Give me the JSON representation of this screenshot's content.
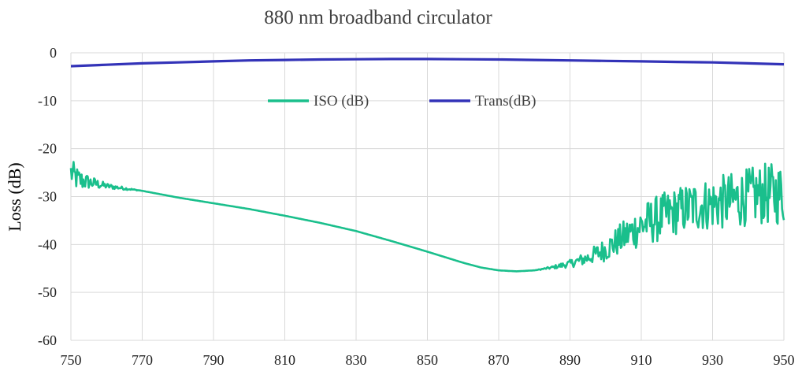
{
  "chart_data": {
    "type": "line",
    "title": "880  nm broadband circulator",
    "xlabel": "",
    "ylabel": "Loss (dB)",
    "xlim": [
      750,
      950
    ],
    "ylim": [
      -60,
      0
    ],
    "x_ticks": [
      "750",
      "770",
      "790",
      "810",
      "830",
      "850",
      "870",
      "890",
      "910",
      "930",
      "950"
    ],
    "y_ticks": [
      "0",
      "-10",
      "-20",
      "-30",
      "-40",
      "-50",
      "-60"
    ],
    "grid": true,
    "legend_position": "top-center",
    "series": [
      {
        "name": "ISO (dB)",
        "color": "#1abf8c",
        "style": "noisy",
        "x": [
          750,
          752,
          755,
          760,
          770,
          780,
          790,
          800,
          810,
          820,
          830,
          840,
          850,
          860,
          865,
          870,
          875,
          880,
          885,
          890,
          895,
          900,
          905,
          910,
          915,
          920,
          925,
          930,
          935,
          940,
          945,
          950
        ],
        "values": [
          -25,
          -26.5,
          -27,
          -27.8,
          -28.8,
          -30.2,
          -31.4,
          -32.6,
          -34,
          -35.5,
          -37.2,
          -39.3,
          -41.5,
          -43.8,
          -44.8,
          -45.4,
          -45.6,
          -45.4,
          -44.8,
          -44,
          -42.8,
          -41,
          -38.5,
          -36,
          -34.5,
          -33,
          -32,
          -31.5,
          -31,
          -30,
          -29.5,
          -29.5
        ],
        "noise_amplitude": [
          3,
          2.5,
          1.5,
          0.6,
          0,
          0,
          0,
          0,
          0,
          0,
          0,
          0,
          0,
          0,
          0,
          0,
          0,
          0,
          0.3,
          0.8,
          1.5,
          2.5,
          3.5,
          4.5,
          5,
          5,
          5.5,
          5.5,
          6,
          6,
          6.5,
          6.5
        ]
      },
      {
        "name": "Trans(dB)",
        "color": "#3333b8",
        "style": "smooth",
        "x": [
          750,
          760,
          770,
          780,
          790,
          800,
          810,
          820,
          830,
          840,
          850,
          860,
          870,
          880,
          890,
          900,
          910,
          920,
          930,
          940,
          950
        ],
        "values": [
          -2.8,
          -2.5,
          -2.2,
          -2.0,
          -1.8,
          -1.6,
          -1.5,
          -1.4,
          -1.35,
          -1.3,
          -1.3,
          -1.35,
          -1.4,
          -1.5,
          -1.6,
          -1.7,
          -1.8,
          -1.9,
          -2.0,
          -2.2,
          -2.4
        ]
      }
    ]
  }
}
